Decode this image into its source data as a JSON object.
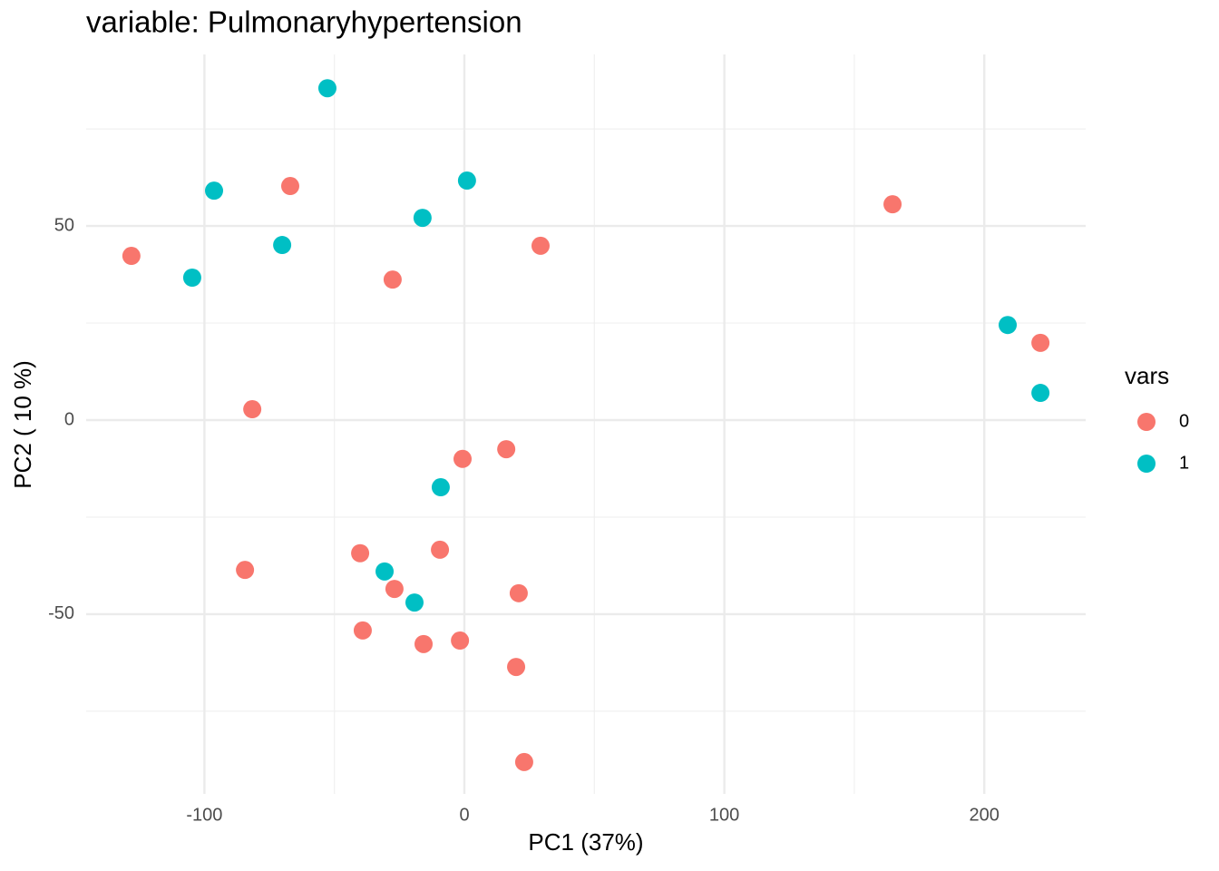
{
  "chart_data": {
    "type": "scatter",
    "title": "variable: Pulmonaryhypertension",
    "x_label": "PC1 (37%)",
    "y_label": "PC2 ( 10 %)",
    "xlim": [
      -145.5,
      239.0
    ],
    "ylim": [
      -96.3,
      94.2
    ],
    "xticks": [
      -100,
      0,
      100,
      200
    ],
    "yticks": [
      -50,
      0,
      50
    ],
    "x_minor_ticks": [
      -50,
      50,
      150
    ],
    "y_minor_ticks": [
      -75,
      -25,
      25,
      75
    ],
    "grid": true,
    "legend_title": "vars",
    "legend_position": "right",
    "series": [
      {
        "name": "0",
        "color": "#F8766D",
        "x": [
          -128.1,
          -67.0,
          29.3,
          -27.6,
          164.7,
          221.6,
          -81.6,
          -0.7,
          16.1,
          -84.4,
          -40.1,
          -9.4,
          -26.9,
          20.9,
          -39.1,
          -15.7,
          -1.7,
          19.9,
          23.0
        ],
        "values": [
          42.3,
          60.3,
          44.9,
          36.2,
          55.6,
          19.9,
          2.8,
          -10.0,
          -7.5,
          -38.6,
          -34.3,
          -33.4,
          -43.5,
          -44.6,
          -54.2,
          -57.7,
          -56.8,
          -63.6,
          -88.1
        ]
      },
      {
        "name": "1",
        "color": "#00BFC4",
        "x": [
          -52.7,
          -96.3,
          -70.1,
          -104.7,
          -16.1,
          1.0,
          209.0,
          221.6,
          -9.1,
          -30.7,
          -19.2
        ],
        "values": [
          85.5,
          59.1,
          45.1,
          36.7,
          52.1,
          61.7,
          24.5,
          7.0,
          -17.3,
          -39.0,
          -47.0
        ]
      }
    ]
  }
}
